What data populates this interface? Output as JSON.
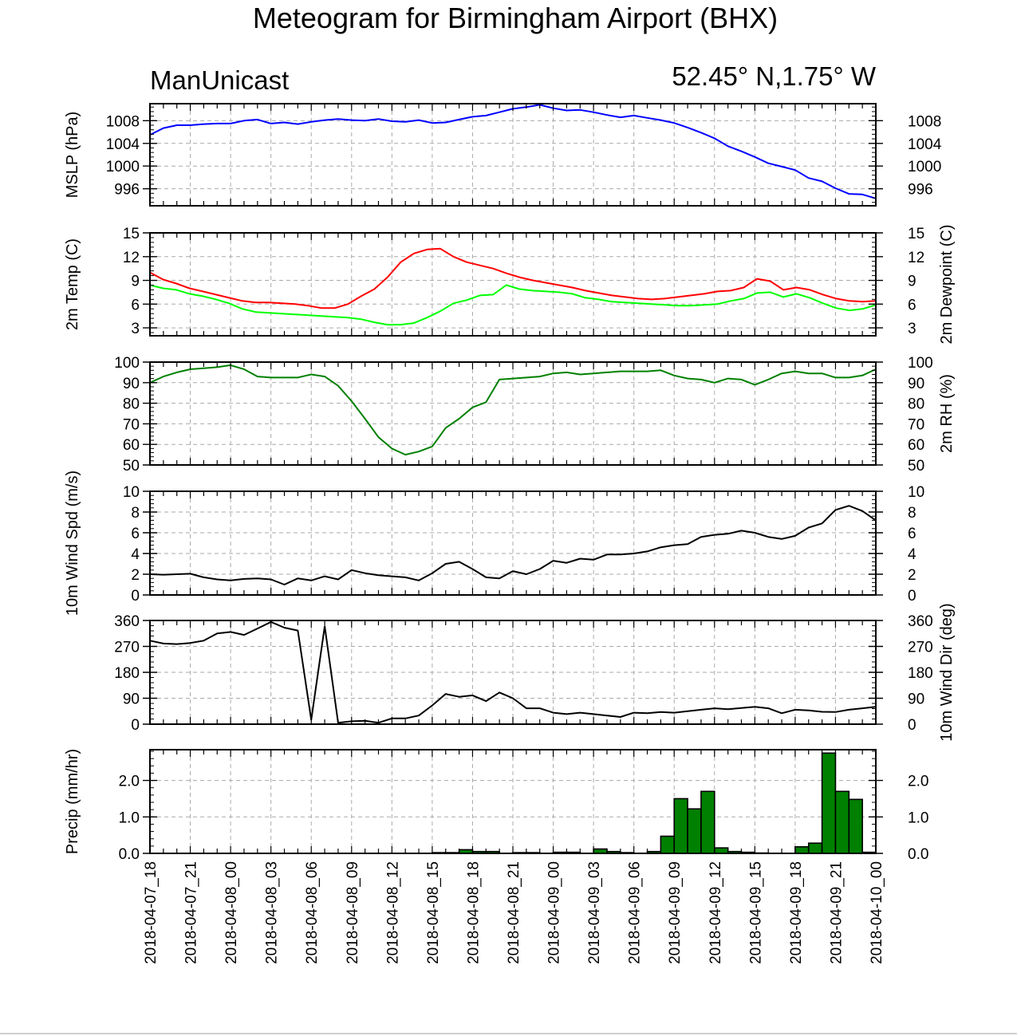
{
  "title": "Meteogram for Birmingham Airport (BHX)",
  "model_label": "ManUnicast",
  "location_label": "52.45° N,1.75° W",
  "time_labels": [
    "2018-04-07_18",
    "2018-04-07_21",
    "2018-04-08_00",
    "2018-04-08_03",
    "2018-04-08_06",
    "2018-04-08_09",
    "2018-04-08_12",
    "2018-04-08_15",
    "2018-04-08_18",
    "2018-04-08_21",
    "2018-04-09_00",
    "2018-04-09_03",
    "2018-04-09_06",
    "2018-04-09_09",
    "2018-04-09_12",
    "2018-04-09_15",
    "2018-04-09_18",
    "2018-04-09_21",
    "2018-04-10_00"
  ],
  "chart_data": [
    {
      "type": "line",
      "ylabel": "MSLP (hPa)",
      "y_ticks": [
        996,
        1000,
        1004,
        1008
      ],
      "ylim": [
        993,
        1011
      ],
      "series": [
        {
          "color": "#0000ff",
          "values": [
            1005.5,
            1006.7,
            1007.2,
            1007.2,
            1007.4,
            1007.5,
            1007.5,
            1008.0,
            1008.2,
            1007.5,
            1007.7,
            1007.4,
            1007.8,
            1008.1,
            1008.3,
            1008.1,
            1008.0,
            1008.3,
            1007.9,
            1007.8,
            1008.1,
            1007.6,
            1007.7,
            1008.2,
            1008.7,
            1008.9,
            1009.5,
            1010.1,
            1010.4,
            1010.8,
            1010.2,
            1009.8,
            1009.9,
            1009.5,
            1009.0,
            1008.6,
            1008.9,
            1008.5,
            1008.1,
            1007.6,
            1006.8,
            1005.9,
            1004.9,
            1003.5,
            1002.6,
            1001.6,
            1000.5,
            999.9,
            999.3,
            997.9,
            997.3,
            996.1,
            995.1,
            995.0,
            994.3
          ]
        }
      ]
    },
    {
      "type": "line",
      "ylabel": "2m Temp (C)",
      "ylabel_right": "2m Dewpoint (C)",
      "y_ticks": [
        3,
        6,
        9,
        12,
        15
      ],
      "ylim": [
        2,
        15
      ],
      "series": [
        {
          "color": "#ff0000",
          "values": [
            10.0,
            9.1,
            8.6,
            8.0,
            7.6,
            7.2,
            6.8,
            6.4,
            6.2,
            6.2,
            6.1,
            6.0,
            5.8,
            5.5,
            5.5,
            6.0,
            7.0,
            7.9,
            9.4,
            11.3,
            12.4,
            12.9,
            13.0,
            12.0,
            11.3,
            10.9,
            10.5,
            9.9,
            9.4,
            9.0,
            8.7,
            8.4,
            8.1,
            7.7,
            7.4,
            7.1,
            6.9,
            6.7,
            6.6,
            6.7,
            6.9,
            7.1,
            7.3,
            7.6,
            7.7,
            8.1,
            9.2,
            8.9,
            7.8,
            8.1,
            7.8,
            7.2,
            6.7,
            6.4,
            6.3,
            6.4
          ]
        },
        {
          "color": "#00ff00",
          "values": [
            8.4,
            8.0,
            7.8,
            7.3,
            7.0,
            6.6,
            6.1,
            5.4,
            5.0,
            4.9,
            4.8,
            4.7,
            4.6,
            4.5,
            4.4,
            4.3,
            4.1,
            3.7,
            3.4,
            3.4,
            3.6,
            4.3,
            5.1,
            6.1,
            6.5,
            7.1,
            7.2,
            8.4,
            7.9,
            7.7,
            7.6,
            7.5,
            7.3,
            6.8,
            6.6,
            6.3,
            6.2,
            6.1,
            6.0,
            5.9,
            5.8,
            5.8,
            5.9,
            6.0,
            6.4,
            6.7,
            7.4,
            7.5,
            6.9,
            7.3,
            6.8,
            6.1,
            5.5,
            5.2,
            5.4,
            5.9
          ]
        }
      ]
    },
    {
      "type": "line",
      "ylabel_right": "2m RH (%)",
      "y_ticks": [
        50,
        60,
        70,
        80,
        90,
        100
      ],
      "ylim": [
        50,
        100
      ],
      "series": [
        {
          "color": "#008000",
          "values": [
            90,
            93,
            95,
            96.5,
            97,
            97.5,
            98.5,
            96.5,
            93,
            92.5,
            92.5,
            92.5,
            94,
            93,
            88.5,
            81,
            72.5,
            63.5,
            58,
            55,
            56.5,
            59,
            68,
            72.5,
            78,
            80.5,
            91.5,
            92,
            92.5,
            93,
            94.5,
            95,
            94,
            94.5,
            95,
            95.5,
            95.5,
            95.5,
            96,
            93.5,
            92,
            91.5,
            90,
            92,
            91.5,
            89,
            91.5,
            94.5,
            95.5,
            94.5,
            94.5,
            92.5,
            92.5,
            93.5,
            96.5
          ]
        }
      ]
    },
    {
      "type": "line",
      "ylabel": "10m Wind Spd (m/s)",
      "y_ticks": [
        0,
        2,
        4,
        6,
        8,
        10
      ],
      "ylim": [
        0,
        10
      ],
      "series": [
        {
          "color": "#000000",
          "values": [
            2.0,
            1.95,
            2.0,
            2.05,
            1.7,
            1.5,
            1.4,
            1.55,
            1.6,
            1.5,
            1.0,
            1.6,
            1.4,
            1.8,
            1.5,
            2.4,
            2.1,
            1.9,
            1.8,
            1.7,
            1.4,
            2.1,
            3.0,
            3.2,
            2.5,
            1.7,
            1.6,
            2.3,
            2.0,
            2.5,
            3.3,
            3.1,
            3.5,
            3.4,
            3.9,
            3.9,
            4.0,
            4.2,
            4.6,
            4.8,
            4.9,
            5.6,
            5.8,
            5.9,
            6.2,
            6.0,
            5.6,
            5.4,
            5.7,
            6.5,
            6.9,
            8.2,
            8.6,
            8.1,
            7.2
          ]
        }
      ]
    },
    {
      "type": "line",
      "ylabel_right": "10m Wind Dir (deg)",
      "y_ticks": [
        0,
        90,
        180,
        270,
        360
      ],
      "ylim": [
        0,
        360
      ],
      "series": [
        {
          "color": "#000000",
          "values": [
            290,
            280,
            278,
            282,
            290,
            315,
            320,
            310,
            332,
            355,
            335,
            325,
            15,
            340,
            5,
            10,
            12,
            5,
            20,
            20,
            30,
            65,
            105,
            95,
            100,
            80,
            110,
            90,
            55,
            55,
            40,
            35,
            40,
            35,
            30,
            25,
            40,
            38,
            42,
            40,
            45,
            50,
            55,
            52,
            56,
            60,
            55,
            38,
            50,
            48,
            43,
            42,
            50,
            55,
            60
          ]
        }
      ]
    },
    {
      "type": "bar",
      "ylabel": "Precip (mm/hr)",
      "y_ticks": [
        "0.0",
        "1.0",
        "2.0"
      ],
      "ylim": [
        0,
        2.8
      ],
      "bar_color": "#008000",
      "values": [
        0,
        0,
        0,
        0,
        0,
        0,
        0,
        0,
        0,
        0,
        0,
        0,
        0,
        0,
        0,
        0,
        0,
        0,
        0,
        0,
        0,
        0.02,
        0.02,
        0.1,
        0.05,
        0.05,
        0,
        0.02,
        0.02,
        0,
        0.03,
        0.03,
        0,
        0.12,
        0.05,
        0.02,
        0,
        0.05,
        0.47,
        1.5,
        1.22,
        1.7,
        0.15,
        0.05,
        0.03,
        0.01,
        0,
        0,
        0.18,
        0.28,
        2.75,
        1.7,
        1.48,
        0.03
      ]
    }
  ]
}
